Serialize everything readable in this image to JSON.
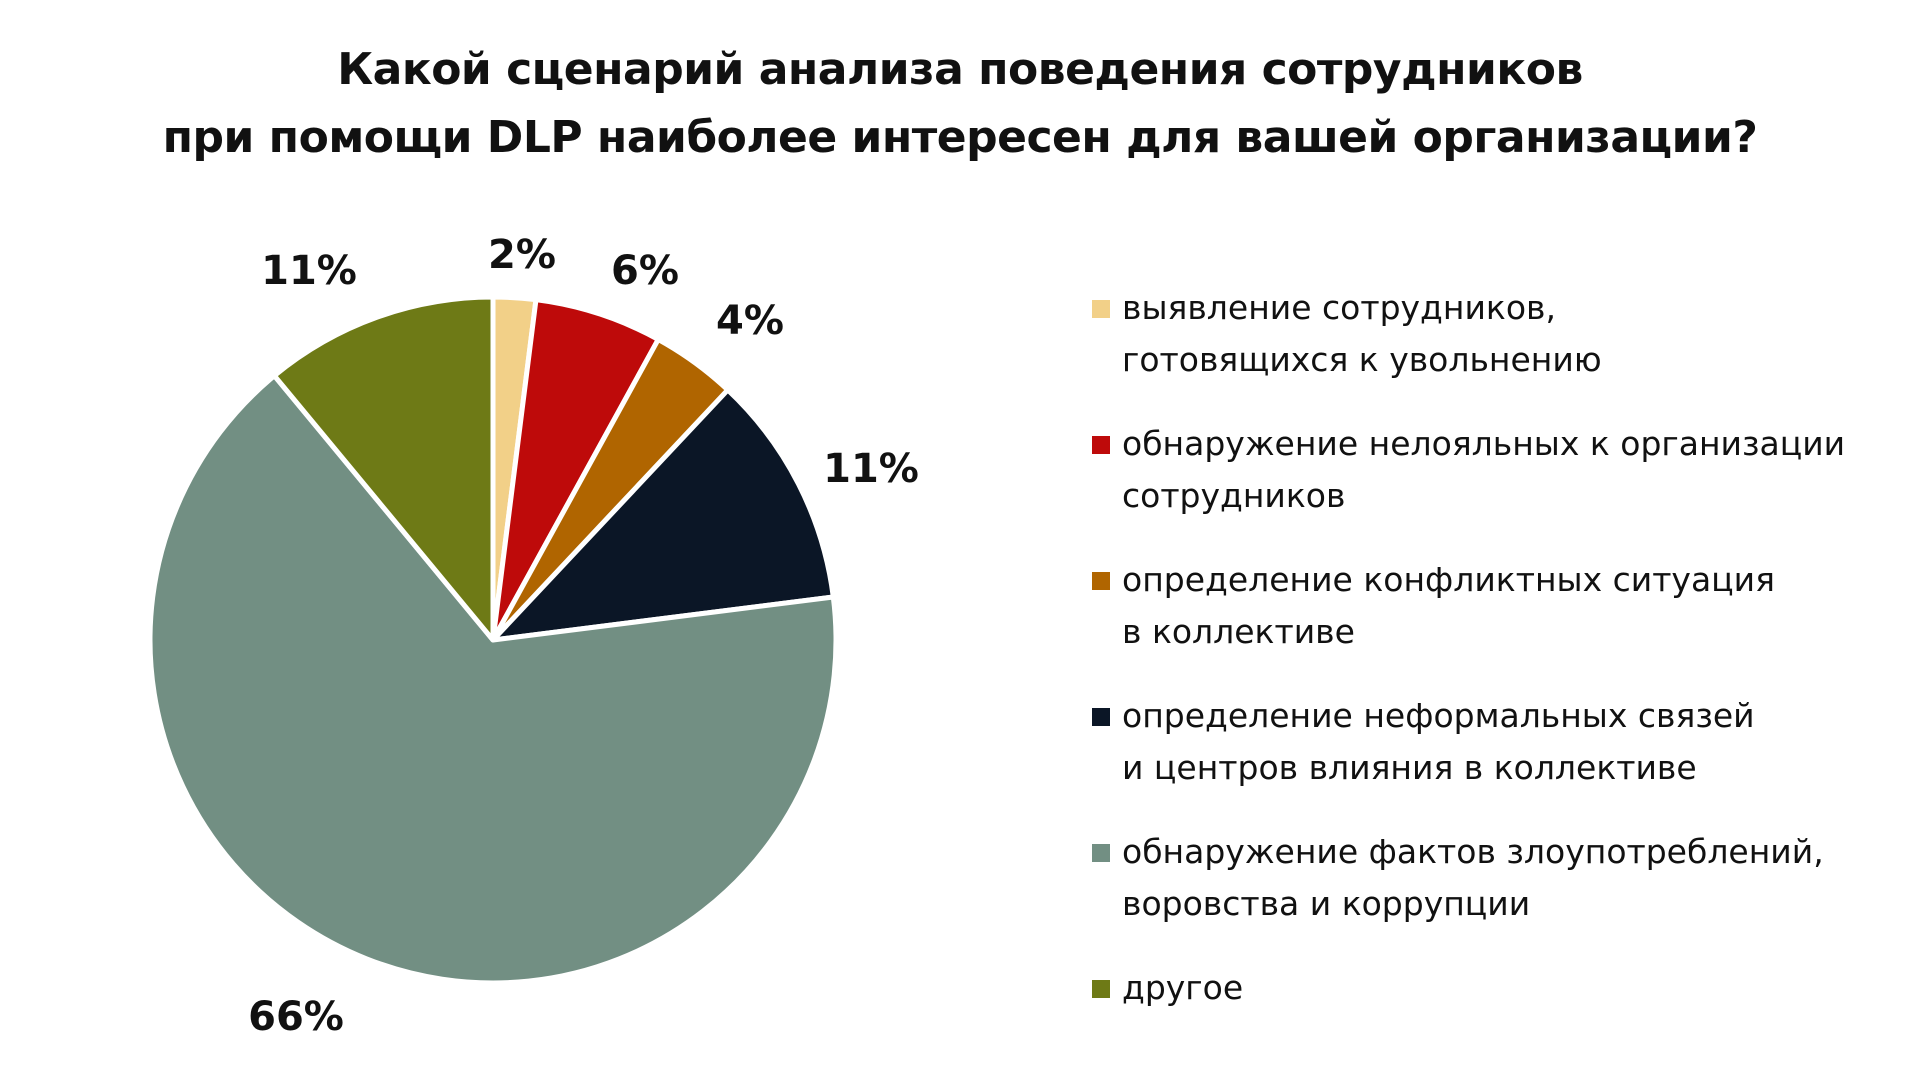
{
  "chart_data": {
    "type": "pie",
    "title_lines": [
      "Какой сценарий анализа поведения сотрудников",
      "при помощи DLP наиболее интересен для вашей организации?"
    ],
    "start_angle_deg": 0,
    "direction": "clockwise",
    "legend_position": "right",
    "slices": [
      {
        "label_lines": [
          "выявление сотрудников,",
          "готовящихся к увольнению"
        ],
        "value": 2,
        "pct_label": "2%",
        "color": "#F2D088"
      },
      {
        "label_lines": [
          "обнаружение нелояльных к организации",
          "сотрудников"
        ],
        "value": 6,
        "pct_label": "6%",
        "color": "#BE0A0A"
      },
      {
        "label_lines": [
          "определение конфликтных ситуация",
          "в коллективе"
        ],
        "value": 4,
        "pct_label": "4%",
        "color": "#B06500"
      },
      {
        "label_lines": [
          "определение неформальных связей",
          "и центров влияния в коллективе"
        ],
        "value": 11,
        "pct_label": "11%",
        "color": "#0B1626"
      },
      {
        "label_lines": [
          "обнаружение фактов злоупотреблений,",
          "воровства и коррупции"
        ],
        "value": 66,
        "pct_label": "66%",
        "color": "#728F83"
      },
      {
        "label_lines": [
          "другое"
        ],
        "value": 11,
        "pct_label": "11%",
        "color": "#6E7A16"
      }
    ]
  }
}
